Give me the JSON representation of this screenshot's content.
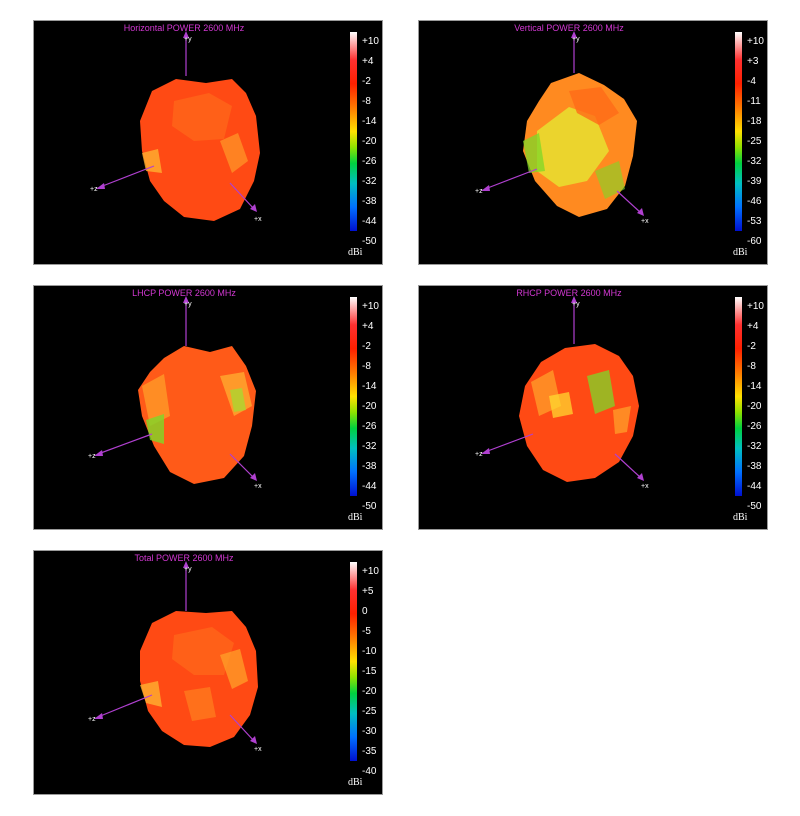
{
  "chart_data": [
    {
      "type": "other",
      "title": "Horizontal POWER 2600  MHz",
      "colorbar": {
        "ticks": [
          "+10",
          "+4",
          "-2",
          "-8",
          "-14",
          "-20",
          "-26",
          "-32",
          "-38",
          "-44",
          "-50"
        ],
        "unit": "dBi",
        "range": [
          -50,
          10
        ]
      },
      "axes": {
        "y": "+y",
        "z": "+z",
        "x": "+x"
      }
    },
    {
      "type": "other",
      "title": "Vertical POWER 2600  MHz",
      "colorbar": {
        "ticks": [
          "+10",
          "+3",
          "-4",
          "-11",
          "-18",
          "-25",
          "-32",
          "-39",
          "-46",
          "-53",
          "-60"
        ],
        "unit": "dBi",
        "range": [
          -60,
          10
        ]
      },
      "axes": {
        "y": "+y",
        "z": "+z",
        "x": "+x"
      }
    },
    {
      "type": "other",
      "title": "LHCP POWER 2600  MHz",
      "colorbar": {
        "ticks": [
          "+10",
          "+4",
          "-2",
          "-8",
          "-14",
          "-20",
          "-26",
          "-32",
          "-38",
          "-44",
          "-50"
        ],
        "unit": "dBi",
        "range": [
          -50,
          10
        ]
      },
      "axes": {
        "y": "+y",
        "z": "+z",
        "x": "+x"
      }
    },
    {
      "type": "other",
      "title": "RHCP POWER 2600  MHz",
      "colorbar": {
        "ticks": [
          "+10",
          "+4",
          "-2",
          "-8",
          "-14",
          "-20",
          "-26",
          "-32",
          "-38",
          "-44",
          "-50"
        ],
        "unit": "dBi",
        "range": [
          -50,
          10
        ]
      },
      "axes": {
        "y": "+y",
        "z": "+z",
        "x": "+x"
      }
    },
    {
      "type": "other",
      "title": "Total POWER 2600  MHz",
      "colorbar": {
        "ticks": [
          "+10",
          "+5",
          "0",
          "-5",
          "-10",
          "-15",
          "-20",
          "-25",
          "-30",
          "-35",
          "-40"
        ],
        "unit": "dBi",
        "range": [
          -40,
          10
        ]
      },
      "axes": {
        "y": "+y",
        "z": "+z",
        "x": "+x"
      }
    }
  ],
  "colors": {
    "title": "#d238d2",
    "axis": "#b040d0",
    "background": "#000000",
    "pattern_main": "#ff4a14",
    "pattern_light": "#ff8a20",
    "pattern_yellow": "#e8e030",
    "pattern_green": "#7ed828"
  }
}
